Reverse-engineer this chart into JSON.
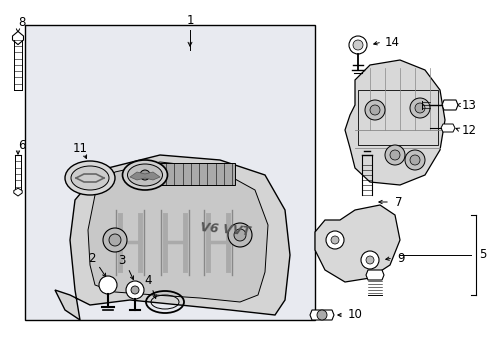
{
  "background_color": "#ffffff",
  "box_bg": "#e8eaf0",
  "line_color": "#000000",
  "gray_line": "#888888",
  "fig_w": 4.89,
  "fig_h": 3.6,
  "dpi": 100
}
